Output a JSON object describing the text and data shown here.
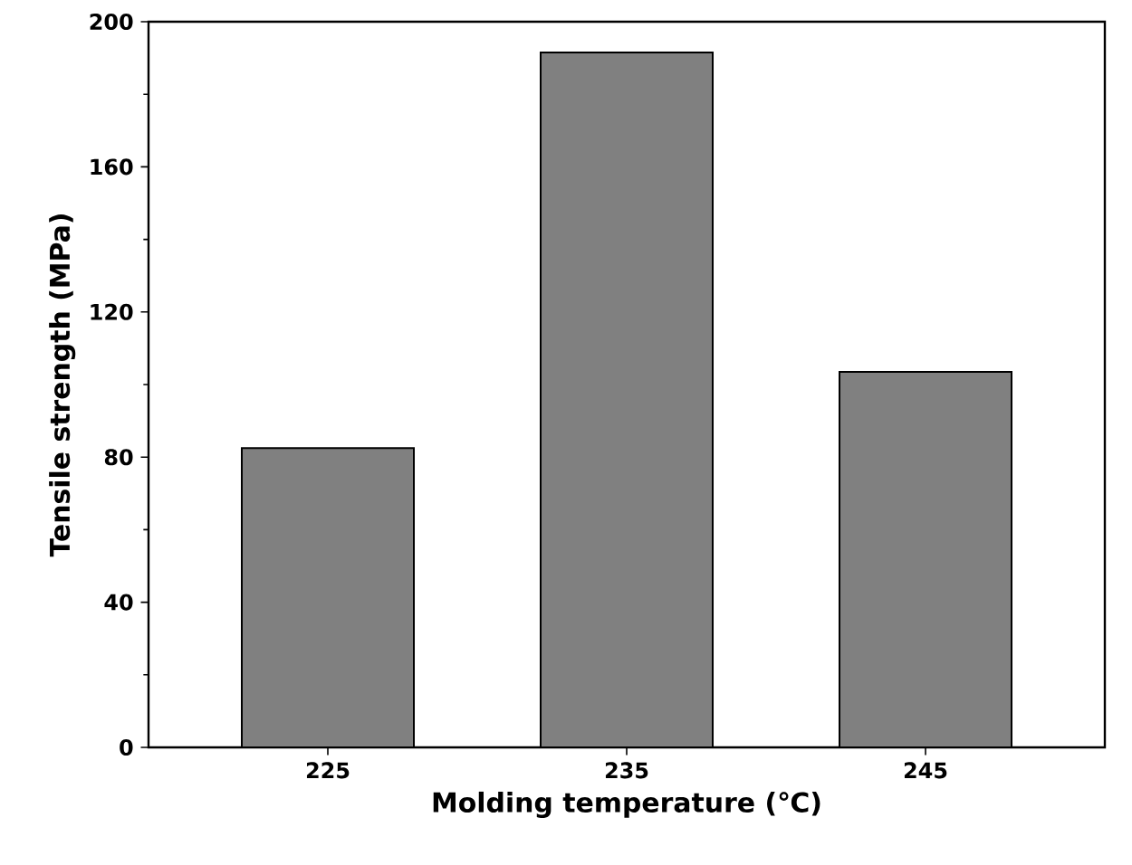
{
  "chart_data": {
    "type": "bar",
    "xlabel": "Molding temperature (℃)",
    "ylabel": "Tensile strength (MPa)",
    "categories": [
      "225",
      "235",
      "245"
    ],
    "values": [
      82.5,
      191.5,
      103.5
    ],
    "color": "#808080",
    "ylim": [
      0,
      200
    ],
    "yticks": [
      0,
      40,
      80,
      120,
      160,
      200
    ],
    "grid": false
  }
}
